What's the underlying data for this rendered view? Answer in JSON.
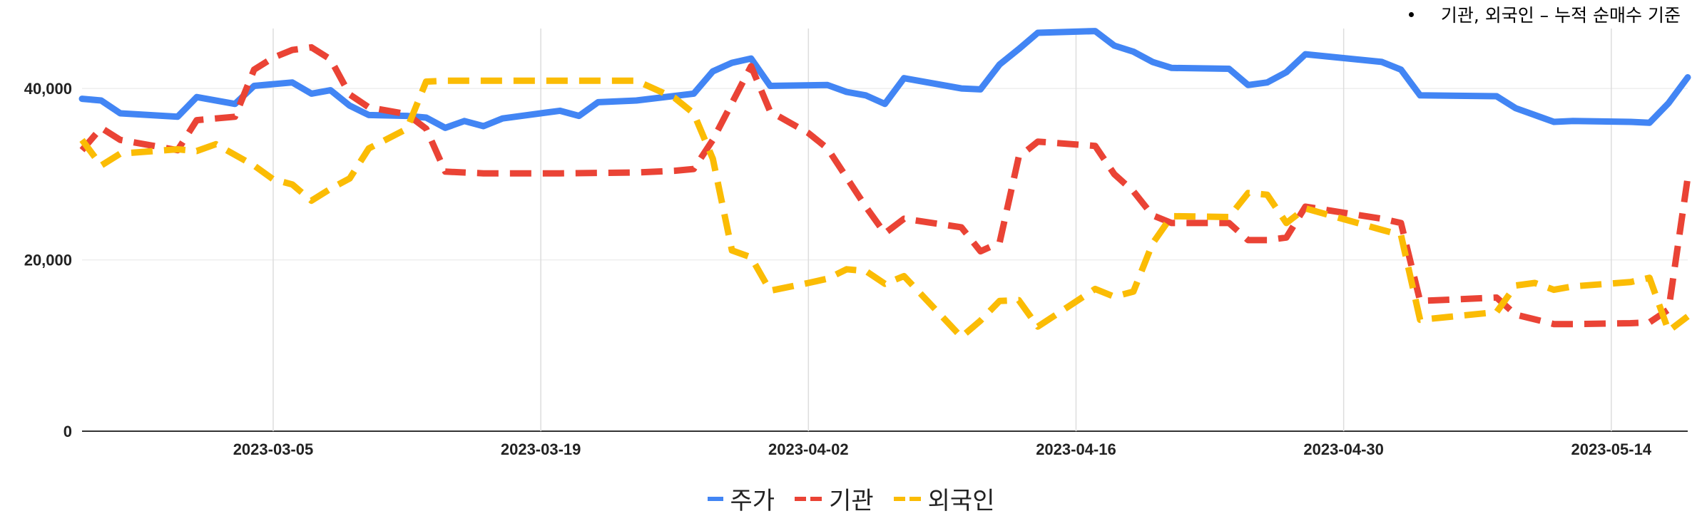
{
  "note": {
    "text": "기관, 외국인 – 누적 순매수 기준"
  },
  "chart_data": {
    "type": "line",
    "title": "",
    "xlabel": "",
    "ylabel": "",
    "ylim": [
      0,
      47000
    ],
    "yticks": [
      0,
      20000,
      40000
    ],
    "ytick_labels": [
      "0",
      "20,000",
      "40,000"
    ],
    "x_start": "2023-02-23",
    "x_end": "2023-05-18",
    "xticks": [
      "2023-03-05",
      "2023-03-19",
      "2023-04-02",
      "2023-04-16",
      "2023-04-30",
      "2023-05-14"
    ],
    "grid": "vertical",
    "legend": "bottom",
    "series": [
      {
        "name": "주가",
        "color": "#4285F4",
        "style": "solid",
        "points": [
          [
            "2023-02-23",
            38800
          ],
          [
            "2023-02-24",
            38600
          ],
          [
            "2023-02-25",
            37100
          ],
          [
            "2023-02-28",
            36700
          ],
          [
            "2023-03-01",
            39000
          ],
          [
            "2023-03-03",
            38200
          ],
          [
            "2023-03-04",
            40300
          ],
          [
            "2023-03-06",
            40700
          ],
          [
            "2023-03-07",
            39400
          ],
          [
            "2023-03-08",
            39800
          ],
          [
            "2023-03-09",
            38000
          ],
          [
            "2023-03-10",
            36900
          ],
          [
            "2023-03-12",
            36800
          ],
          [
            "2023-03-13",
            36600
          ],
          [
            "2023-03-14",
            35400
          ],
          [
            "2023-03-15",
            36200
          ],
          [
            "2023-03-16",
            35600
          ],
          [
            "2023-03-17",
            36500
          ],
          [
            "2023-03-20",
            37400
          ],
          [
            "2023-03-21",
            36800
          ],
          [
            "2023-03-22",
            38400
          ],
          [
            "2023-03-24",
            38600
          ],
          [
            "2023-03-27",
            39400
          ],
          [
            "2023-03-28",
            42000
          ],
          [
            "2023-03-29",
            43000
          ],
          [
            "2023-03-30",
            43500
          ],
          [
            "2023-03-31",
            40300
          ],
          [
            "2023-04-03",
            40400
          ],
          [
            "2023-04-04",
            39600
          ],
          [
            "2023-04-05",
            39200
          ],
          [
            "2023-04-06",
            38200
          ],
          [
            "2023-04-07",
            41200
          ],
          [
            "2023-04-10",
            40000
          ],
          [
            "2023-04-11",
            39900
          ],
          [
            "2023-04-12",
            42800
          ],
          [
            "2023-04-13",
            44600
          ],
          [
            "2023-04-14",
            46500
          ],
          [
            "2023-04-17",
            46700
          ],
          [
            "2023-04-18",
            45000
          ],
          [
            "2023-04-19",
            44300
          ],
          [
            "2023-04-20",
            43100
          ],
          [
            "2023-04-21",
            42400
          ],
          [
            "2023-04-24",
            42300
          ],
          [
            "2023-04-25",
            40400
          ],
          [
            "2023-04-26",
            40700
          ],
          [
            "2023-04-27",
            41900
          ],
          [
            "2023-04-28",
            44000
          ],
          [
            "2023-05-02",
            43100
          ],
          [
            "2023-05-03",
            42200
          ],
          [
            "2023-05-04",
            39200
          ],
          [
            "2023-05-08",
            39100
          ],
          [
            "2023-05-09",
            37700
          ],
          [
            "2023-05-10",
            36900
          ],
          [
            "2023-05-11",
            36100
          ],
          [
            "2023-05-12",
            36200
          ],
          [
            "2023-05-15",
            36100
          ],
          [
            "2023-05-16",
            36000
          ],
          [
            "2023-05-17",
            38300
          ],
          [
            "2023-05-18",
            41300
          ]
        ]
      },
      {
        "name": "기관",
        "color": "#EA4335",
        "style": "dashed",
        "points": [
          [
            "2023-02-23",
            32800
          ],
          [
            "2023-02-24",
            35400
          ],
          [
            "2023-02-25",
            34000
          ],
          [
            "2023-02-28",
            32800
          ],
          [
            "2023-03-01",
            36300
          ],
          [
            "2023-03-03",
            36700
          ],
          [
            "2023-03-04",
            42200
          ],
          [
            "2023-03-05",
            43600
          ],
          [
            "2023-03-06",
            44500
          ],
          [
            "2023-03-07",
            44800
          ],
          [
            "2023-03-08",
            43400
          ],
          [
            "2023-03-09",
            39300
          ],
          [
            "2023-03-10",
            37800
          ],
          [
            "2023-03-12",
            37000
          ],
          [
            "2023-03-13",
            35300
          ],
          [
            "2023-03-14",
            30300
          ],
          [
            "2023-03-16",
            30100
          ],
          [
            "2023-03-20",
            30100
          ],
          [
            "2023-03-24",
            30200
          ],
          [
            "2023-03-26",
            30400
          ],
          [
            "2023-03-27",
            30600
          ],
          [
            "2023-03-28",
            34000
          ],
          [
            "2023-03-30",
            42600
          ],
          [
            "2023-03-31",
            37300
          ],
          [
            "2023-04-02",
            34800
          ],
          [
            "2023-04-03",
            33000
          ],
          [
            "2023-04-05",
            26200
          ],
          [
            "2023-04-06",
            23100
          ],
          [
            "2023-04-07",
            24800
          ],
          [
            "2023-04-10",
            23800
          ],
          [
            "2023-04-11",
            21000
          ],
          [
            "2023-04-12",
            22000
          ],
          [
            "2023-04-13",
            32000
          ],
          [
            "2023-04-14",
            33800
          ],
          [
            "2023-04-17",
            33300
          ],
          [
            "2023-04-18",
            30000
          ],
          [
            "2023-04-19",
            28000
          ],
          [
            "2023-04-20",
            25200
          ],
          [
            "2023-04-21",
            24300
          ],
          [
            "2023-04-24",
            24300
          ],
          [
            "2023-04-25",
            22300
          ],
          [
            "2023-04-26",
            22300
          ],
          [
            "2023-04-27",
            22600
          ],
          [
            "2023-04-28",
            26200
          ],
          [
            "2023-05-02",
            24800
          ],
          [
            "2023-05-03",
            24300
          ],
          [
            "2023-05-04",
            15200
          ],
          [
            "2023-05-08",
            15600
          ],
          [
            "2023-05-09",
            13600
          ],
          [
            "2023-05-11",
            12500
          ],
          [
            "2023-05-12",
            12500
          ],
          [
            "2023-05-15",
            12600
          ],
          [
            "2023-05-16",
            12700
          ],
          [
            "2023-05-17",
            14200
          ],
          [
            "2023-05-18",
            29600
          ]
        ]
      },
      {
        "name": "외국인",
        "color": "#FBBC04",
        "style": "dashed",
        "points": [
          [
            "2023-02-23",
            34000
          ],
          [
            "2023-02-24",
            31000
          ],
          [
            "2023-02-25",
            32400
          ],
          [
            "2023-02-28",
            32900
          ],
          [
            "2023-03-01",
            32700
          ],
          [
            "2023-03-02",
            33500
          ],
          [
            "2023-03-04",
            31000
          ],
          [
            "2023-03-05",
            29400
          ],
          [
            "2023-03-06",
            28800
          ],
          [
            "2023-03-07",
            26900
          ],
          [
            "2023-03-08",
            28300
          ],
          [
            "2023-03-09",
            29500
          ],
          [
            "2023-03-10",
            33000
          ],
          [
            "2023-03-12",
            35300
          ],
          [
            "2023-03-13",
            40800
          ],
          [
            "2023-03-14",
            40900
          ],
          [
            "2023-03-19",
            40900
          ],
          [
            "2023-03-24",
            40900
          ],
          [
            "2023-03-26",
            38900
          ],
          [
            "2023-03-27",
            37100
          ],
          [
            "2023-03-28",
            31800
          ],
          [
            "2023-03-29",
            21100
          ],
          [
            "2023-03-30",
            20300
          ],
          [
            "2023-03-31",
            16400
          ],
          [
            "2023-04-02",
            17300
          ],
          [
            "2023-04-03",
            17800
          ],
          [
            "2023-04-04",
            18900
          ],
          [
            "2023-04-05",
            18700
          ],
          [
            "2023-04-06",
            17200
          ],
          [
            "2023-04-07",
            18100
          ],
          [
            "2023-04-10",
            11000
          ],
          [
            "2023-04-11",
            12900
          ],
          [
            "2023-04-12",
            15200
          ],
          [
            "2023-04-13",
            15300
          ],
          [
            "2023-04-14",
            12200
          ],
          [
            "2023-04-17",
            16600
          ],
          [
            "2023-04-18",
            15700
          ],
          [
            "2023-04-19",
            16300
          ],
          [
            "2023-04-20",
            21900
          ],
          [
            "2023-04-21",
            25100
          ],
          [
            "2023-04-24",
            25000
          ],
          [
            "2023-04-25",
            27800
          ],
          [
            "2023-04-26",
            27600
          ],
          [
            "2023-04-27",
            24300
          ],
          [
            "2023-04-28",
            26000
          ],
          [
            "2023-05-02",
            23500
          ],
          [
            "2023-05-03",
            22900
          ],
          [
            "2023-05-04",
            13000
          ],
          [
            "2023-05-08",
            13900
          ],
          [
            "2023-05-09",
            17000
          ],
          [
            "2023-05-10",
            17300
          ],
          [
            "2023-05-11",
            16500
          ],
          [
            "2023-05-12",
            16900
          ],
          [
            "2023-05-15",
            17400
          ],
          [
            "2023-05-16",
            17900
          ],
          [
            "2023-05-17",
            11700
          ],
          [
            "2023-05-18",
            13400
          ]
        ]
      }
    ]
  }
}
